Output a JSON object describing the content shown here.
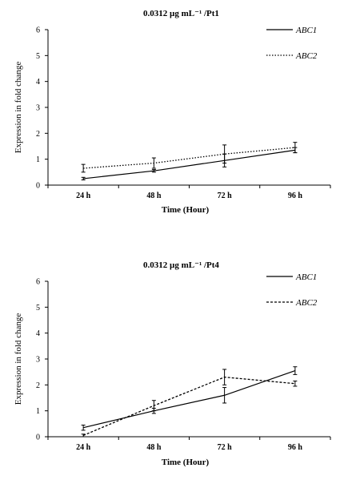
{
  "chart_data": [
    {
      "type": "line",
      "title": "0.0312 µg mL⁻¹ /Pt1",
      "xlabel": "Time (Hour)",
      "ylabel": "Expression in fold change",
      "categories": [
        "24 h",
        "48 h",
        "72 h",
        "96 h"
      ],
      "ylim": [
        0,
        6
      ],
      "yticks": [
        0,
        1,
        2,
        3,
        4,
        5,
        6
      ],
      "grid": false,
      "legend": "top-right",
      "series": [
        {
          "name": "ABC1",
          "style": "solid",
          "color": "#000000",
          "values": [
            0.25,
            0.55,
            0.95,
            1.35
          ],
          "errors": [
            0.05,
            0.05,
            0.25,
            0.1
          ]
        },
        {
          "name": "ABC2",
          "style": "dotted",
          "color": "#000000",
          "values": [
            0.65,
            0.85,
            1.2,
            1.45
          ],
          "errors": [
            0.15,
            0.2,
            0.35,
            0.2
          ]
        }
      ]
    },
    {
      "type": "line",
      "title": "0.0312 µg mL⁻¹ /Pt4",
      "xlabel": "Time (Hour)",
      "ylabel": "Expression in fold change",
      "categories": [
        "24 h",
        "48 h",
        "72 h",
        "96 h"
      ],
      "ylim": [
        0,
        6
      ],
      "yticks": [
        0,
        1,
        2,
        3,
        4,
        5,
        6
      ],
      "grid": false,
      "legend": "top-right",
      "series": [
        {
          "name": "ABC1",
          "style": "solid",
          "color": "#000000",
          "values": [
            0.35,
            1.0,
            1.6,
            2.55
          ],
          "errors": [
            0.1,
            0.1,
            0.3,
            0.15
          ]
        },
        {
          "name": "ABC2",
          "style": "dashed",
          "color": "#000000",
          "values": [
            0.05,
            1.2,
            2.3,
            2.05
          ],
          "errors": [
            0.05,
            0.2,
            0.3,
            0.1
          ]
        }
      ]
    }
  ]
}
